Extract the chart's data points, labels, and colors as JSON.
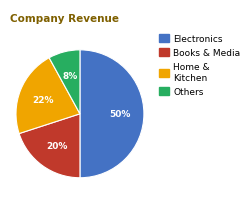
{
  "title": "Company Revenue",
  "slices": [
    50,
    20,
    22,
    8
  ],
  "labels": [
    "Electronics",
    "Books & Media",
    "Home &\nKitchen",
    "Others"
  ],
  "colors": [
    "#4472C4",
    "#C0392B",
    "#F0A500",
    "#27AE60"
  ],
  "pct_labels": [
    "50%",
    "20%",
    "22%",
    "8%"
  ],
  "startangle": 90,
  "title_fontsize": 7.5,
  "pct_fontsize": 6.5,
  "legend_fontsize": 6.5,
  "background_color": "#ffffff",
  "title_color": "#7F6000"
}
